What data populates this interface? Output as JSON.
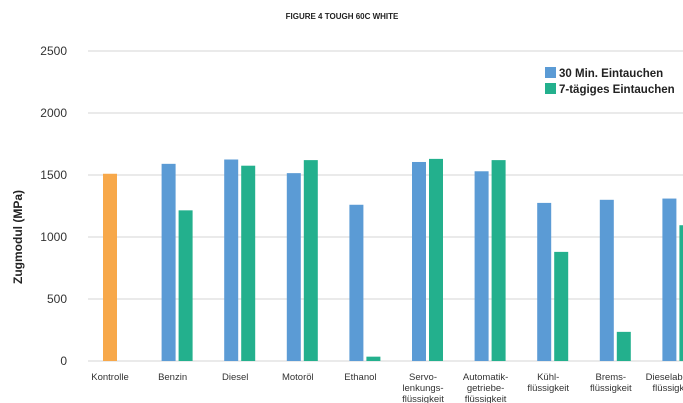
{
  "chart_data": {
    "type": "bar",
    "title": "FIGURE 4 TOUGH 60C WHITE",
    "ylabel": "Zugmodul (MPa)",
    "xlabel": "",
    "ylim": [
      0,
      2500
    ],
    "yticks": [
      0,
      500,
      1000,
      1500,
      2000,
      2500
    ],
    "grid": true,
    "legend_position": "top-right",
    "categories": [
      [
        "Kontrolle"
      ],
      [
        "Benzin"
      ],
      [
        "Diesel"
      ],
      [
        "Motoröl"
      ],
      [
        "Ethanol"
      ],
      [
        "Servo-",
        "lenkungs-",
        "flüssigkeit"
      ],
      [
        "Automatik-",
        "getriebe-",
        "flüssigkeit"
      ],
      [
        "Kühl-",
        "flüssigkeit"
      ],
      [
        "Brems-",
        "flüssigkeit"
      ],
      [
        "Dieselabgas-",
        "flüssigkeit"
      ]
    ],
    "control": {
      "category_index": 0,
      "value": 1510,
      "color": "#f7a84a"
    },
    "series": [
      {
        "name": "30 Min. Eintauchen",
        "color": "#5b9bd5",
        "values": [
          null,
          1590,
          1625,
          1515,
          1260,
          1605,
          1530,
          1275,
          1300,
          1310
        ]
      },
      {
        "name": "7-tägiges Eintauchen",
        "color": "#23b08d",
        "values": [
          null,
          1215,
          1575,
          1620,
          35,
          1630,
          1620,
          880,
          235,
          1095
        ]
      }
    ]
  }
}
